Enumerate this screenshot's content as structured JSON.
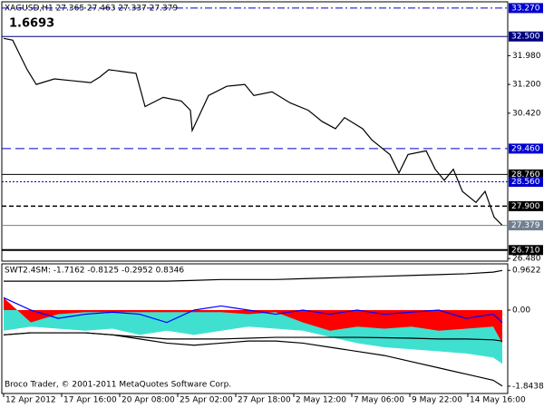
{
  "chart_data": [
    {
      "type": "line",
      "title": "XAGUSD,H1  27.365 27.463 27.337 27.379",
      "annotation": "1.6693",
      "annotation_color": "#b22222",
      "xlim": [
        -2,
        556
      ],
      "ylim": [
        26.41,
        33.44
      ],
      "yticks": [
        {
          "value": 31.98,
          "label": "31.980"
        },
        {
          "value": 31.2,
          "label": "31.200"
        },
        {
          "value": 30.42,
          "label": "30.420"
        },
        {
          "value": 26.48,
          "label": "26.480"
        }
      ],
      "x": [
        0,
        10,
        18,
        26,
        36,
        56,
        76,
        96,
        106,
        116,
        131,
        146,
        156,
        176,
        196,
        206,
        208,
        226,
        246,
        266,
        276,
        296,
        316,
        336,
        351,
        366,
        376,
        396,
        406,
        426,
        436,
        446,
        466,
        476,
        486,
        496,
        506,
        521,
        531,
        541,
        550
      ],
      "series": [
        {
          "color": "#000000",
          "values": [
            32.45,
            32.4,
            32.0,
            31.6,
            31.2,
            31.35,
            31.3,
            31.25,
            31.4,
            31.6,
            31.55,
            31.5,
            30.6,
            30.85,
            30.75,
            30.5,
            29.95,
            30.9,
            31.15,
            31.2,
            30.9,
            31.0,
            30.7,
            30.5,
            30.2,
            30.0,
            30.3,
            30.0,
            29.7,
            29.3,
            28.8,
            29.3,
            29.4,
            28.9,
            28.6,
            28.9,
            28.3,
            28.0,
            28.3,
            27.6,
            27.38
          ]
        }
      ],
      "levels": [
        {
          "value": 33.27,
          "label": "33.270",
          "style": "dashdot",
          "color": "#0000cd"
        },
        {
          "value": 32.5,
          "label": "32.500",
          "style": "solid",
          "color": "#000080"
        },
        {
          "value": 29.46,
          "label": "29.460",
          "style": "dash",
          "color": "#0000cd"
        },
        {
          "value": 28.76,
          "label": "28.760",
          "style": "solid",
          "color": "#000000"
        },
        {
          "value": 28.56,
          "label": "28.560",
          "style": "dot",
          "color": "#0000cd"
        },
        {
          "value": 27.9,
          "label": "27.900",
          "style": "dashed",
          "color": "#000000"
        },
        {
          "value": 27.379,
          "label": "27.379",
          "style": "thin",
          "color": "#708090"
        },
        {
          "value": 26.71,
          "label": "26.710",
          "style": "thick",
          "color": "#000000"
        }
      ]
    },
    {
      "type": "area",
      "title": "SWT2.4SM: -1.7162 -0.8125 -0.2952 0.8346",
      "footer": "Broco Trader, © 2001-2011 MetaQuotes Software Corp.",
      "xlim": [
        -2,
        556
      ],
      "ylim": [
        -2.02,
        1.12
      ],
      "yticks": [
        0.9622,
        {
          "value": 0,
          "label": "0.00"
        },
        -1.8438
      ],
      "xticks": [
        {
          "value": 0,
          "label": "12 Apr 2012"
        },
        {
          "value": 64,
          "label": "17 Apr 16:00"
        },
        {
          "value": 128,
          "label": "20 Apr 08:00"
        },
        {
          "value": 192,
          "label": "25 Apr 02:00"
        },
        {
          "value": 256,
          "label": "27 Apr 18:00"
        },
        {
          "value": 320,
          "label": "2 May 12:00"
        },
        {
          "value": 384,
          "label": "7 May 06:00"
        },
        {
          "value": 448,
          "label": "9 May 22:00"
        },
        {
          "value": 512,
          "label": "14 May 16:00"
        }
      ],
      "x": [
        0,
        30,
        60,
        90,
        120,
        150,
        180,
        210,
        240,
        270,
        300,
        330,
        360,
        390,
        420,
        450,
        480,
        510,
        540,
        550
      ],
      "series": [
        {
          "kind": "area",
          "color": "#40e0d0",
          "values": [
            -0.5,
            -0.4,
            -0.45,
            -0.5,
            -0.45,
            -0.6,
            -0.5,
            -0.6,
            -0.5,
            -0.4,
            -0.45,
            -0.5,
            -0.65,
            -0.8,
            -0.9,
            -0.95,
            -1.0,
            -1.05,
            -1.15,
            -1.3
          ]
        },
        {
          "kind": "area",
          "color": "#ff0000",
          "values": [
            0.3,
            -0.3,
            -0.1,
            -0.05,
            -0.05,
            -0.05,
            -0.05,
            -0.05,
            -0.05,
            -0.1,
            -0.05,
            -0.3,
            -0.5,
            -0.4,
            -0.45,
            -0.4,
            -0.5,
            -0.45,
            -0.4,
            -0.8
          ]
        },
        {
          "kind": "line",
          "color": "#000000",
          "values": [
            0.7,
            0.7,
            0.7,
            0.7,
            0.7,
            0.7,
            0.7,
            0.72,
            0.74,
            0.74,
            0.74,
            0.76,
            0.78,
            0.8,
            0.82,
            0.84,
            0.86,
            0.88,
            0.92,
            0.96
          ]
        },
        {
          "kind": "line",
          "color": "#000000",
          "values": [
            -0.6,
            -0.55,
            -0.55,
            -0.55,
            -0.6,
            -0.65,
            -0.7,
            -0.7,
            -0.7,
            -0.68,
            -0.66,
            -0.66,
            -0.66,
            -0.66,
            -0.67,
            -0.68,
            -0.7,
            -0.7,
            -0.72,
            -0.75
          ]
        },
        {
          "kind": "line",
          "color": "#000000",
          "values": [
            -0.6,
            -0.55,
            -0.55,
            -0.55,
            -0.6,
            -0.7,
            -0.8,
            -0.85,
            -0.8,
            -0.75,
            -0.75,
            -0.8,
            -0.9,
            -1.0,
            -1.1,
            -1.25,
            -1.4,
            -1.55,
            -1.7,
            -1.84
          ]
        },
        {
          "kind": "line",
          "color": "#0000ff",
          "values": [
            0.3,
            0.0,
            -0.2,
            -0.1,
            -0.05,
            -0.1,
            -0.3,
            0.0,
            0.1,
            0.0,
            -0.1,
            0.0,
            -0.1,
            0.0,
            -0.1,
            -0.05,
            0.0,
            -0.2,
            -0.1,
            -0.3
          ]
        }
      ]
    }
  ]
}
